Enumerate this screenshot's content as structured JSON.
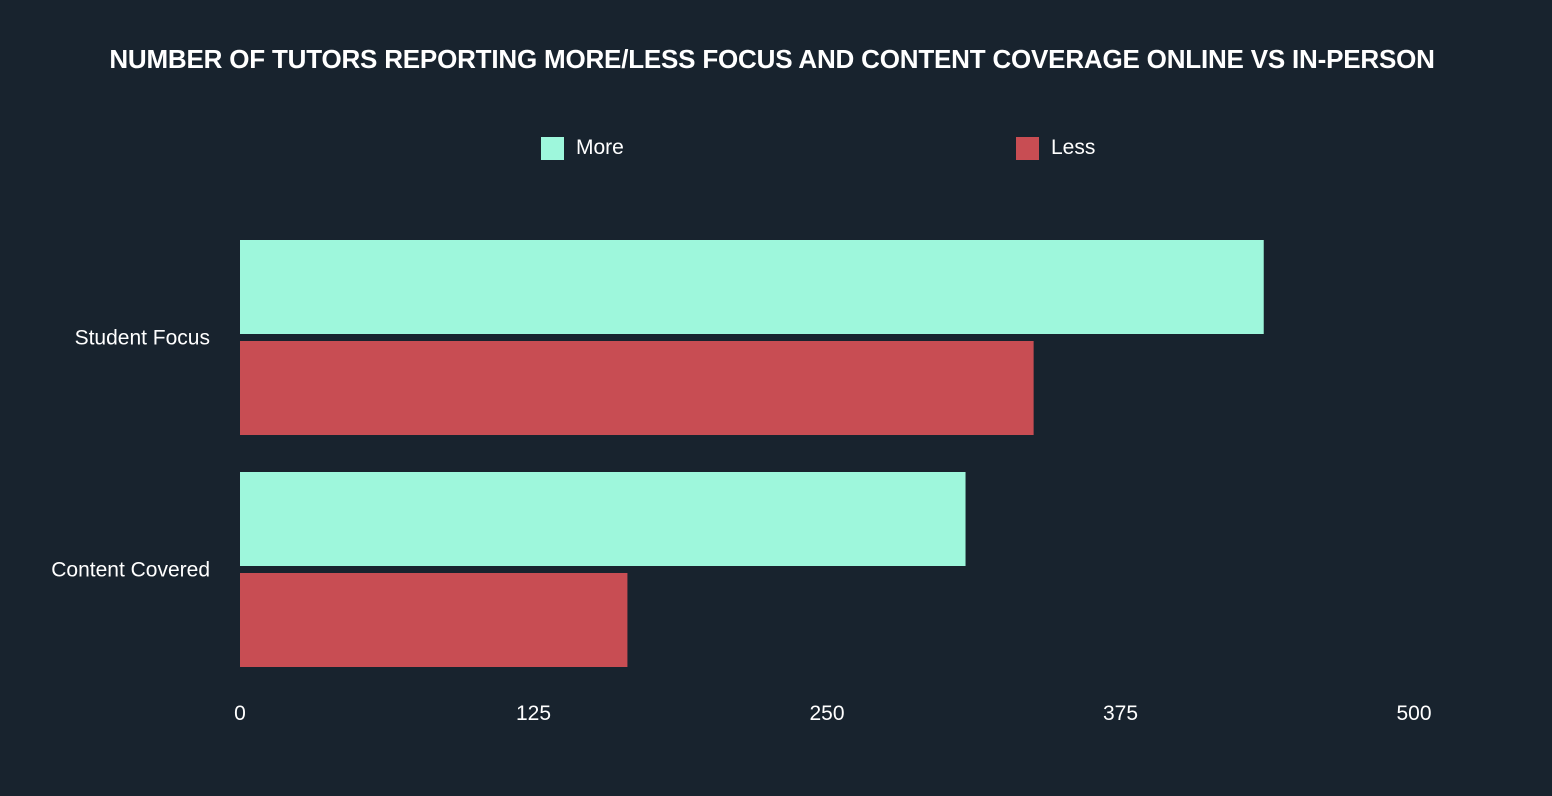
{
  "chart_data": {
    "type": "bar",
    "orientation": "horizontal",
    "title": "NUMBER OF TUTORS REPORTING MORE/LESS FOCUS AND CONTENT COVERAGE ONLINE VS IN-PERSON",
    "categories": [
      "Student Focus",
      "Content Covered"
    ],
    "series": [
      {
        "name": "More",
        "color": "#9ef7dc",
        "values": [
          436,
          309
        ]
      },
      {
        "name": "Less",
        "color": "#c84d53",
        "values": [
          338,
          165
        ]
      }
    ],
    "xlim": [
      0,
      500
    ],
    "xticks": [
      "0",
      "125",
      "250",
      "375",
      "500"
    ],
    "xlabel": "",
    "ylabel": "",
    "legend_position": "top-center",
    "grid": false
  },
  "colors": {
    "background": "#18232e",
    "text": "#ffffff"
  }
}
